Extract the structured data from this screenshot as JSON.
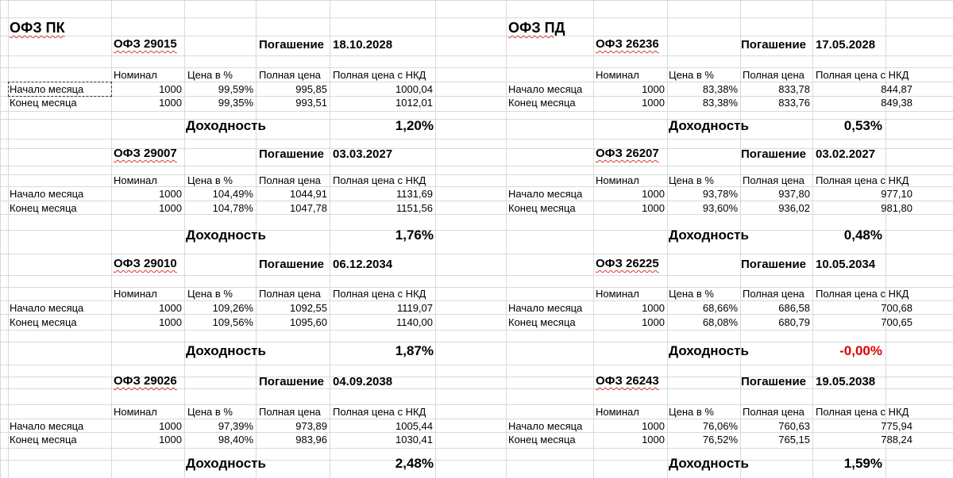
{
  "labels": {
    "nominal": "Номинал",
    "price_pct": "Цена в %",
    "full_price": "Полная цена",
    "full_price_nkd": "Полная цена с НКД",
    "start": "Начало месяца",
    "end": "Конец месяца",
    "maturity": "Погашение",
    "yield": "Доходность"
  },
  "sections": [
    {
      "title": "ОФЗ ПК",
      "bonds": [
        {
          "name": "ОФЗ 29015",
          "maturity_date": "18.10.2028",
          "start": {
            "nominal": "1000",
            "price_pct": "99,59%",
            "full_price": "995,85",
            "full_price_nkd": "1000,04"
          },
          "end": {
            "nominal": "1000",
            "price_pct": "99,35%",
            "full_price": "993,51",
            "full_price_nkd": "1012,01"
          },
          "yield": "1,20%",
          "yield_negative": false
        },
        {
          "name": "ОФЗ 29007",
          "maturity_date": "03.03.2027",
          "start": {
            "nominal": "1000",
            "price_pct": "104,49%",
            "full_price": "1044,91",
            "full_price_nkd": "1131,69"
          },
          "end": {
            "nominal": "1000",
            "price_pct": "104,78%",
            "full_price": "1047,78",
            "full_price_nkd": "1151,56"
          },
          "yield": "1,76%",
          "yield_negative": false
        },
        {
          "name": "ОФЗ 29010",
          "maturity_date": "06.12.2034",
          "start": {
            "nominal": "1000",
            "price_pct": "109,26%",
            "full_price": "1092,55",
            "full_price_nkd": "1119,07"
          },
          "end": {
            "nominal": "1000",
            "price_pct": "109,56%",
            "full_price": "1095,60",
            "full_price_nkd": "1140,00"
          },
          "yield": "1,87%",
          "yield_negative": false
        },
        {
          "name": "ОФЗ 29026",
          "maturity_date": "04.09.2038",
          "start": {
            "nominal": "1000",
            "price_pct": "97,39%",
            "full_price": "973,89",
            "full_price_nkd": "1005,44"
          },
          "end": {
            "nominal": "1000",
            "price_pct": "98,40%",
            "full_price": "983,96",
            "full_price_nkd": "1030,41"
          },
          "yield": "2,48%",
          "yield_negative": false
        }
      ]
    },
    {
      "title": "ОФЗ ПД",
      "bonds": [
        {
          "name": "ОФЗ 26236",
          "maturity_date": "17.05.2028",
          "start": {
            "nominal": "1000",
            "price_pct": "83,38%",
            "full_price": "833,78",
            "full_price_nkd": "844,87"
          },
          "end": {
            "nominal": "1000",
            "price_pct": "83,38%",
            "full_price": "833,76",
            "full_price_nkd": "849,38"
          },
          "yield": "0,53%",
          "yield_negative": false
        },
        {
          "name": "ОФЗ 26207",
          "maturity_date": "03.02.2027",
          "start": {
            "nominal": "1000",
            "price_pct": "93,78%",
            "full_price": "937,80",
            "full_price_nkd": "977,10"
          },
          "end": {
            "nominal": "1000",
            "price_pct": "93,60%",
            "full_price": "936,02",
            "full_price_nkd": "981,80"
          },
          "yield": "0,48%",
          "yield_negative": false
        },
        {
          "name": "ОФЗ 26225",
          "maturity_date": "10.05.2034",
          "start": {
            "nominal": "1000",
            "price_pct": "68,66%",
            "full_price": "686,58",
            "full_price_nkd": "700,68"
          },
          "end": {
            "nominal": "1000",
            "price_pct": "68,08%",
            "full_price": "680,79",
            "full_price_nkd": "700,65"
          },
          "yield": "-0,00%",
          "yield_negative": true
        },
        {
          "name": "ОФЗ 26243",
          "maturity_date": "19.05.2038",
          "start": {
            "nominal": "1000",
            "price_pct": "76,06%",
            "full_price": "760,63",
            "full_price_nkd": "775,94"
          },
          "end": {
            "nominal": "1000",
            "price_pct": "76,52%",
            "full_price": "765,15",
            "full_price_nkd": "788,24"
          },
          "yield": "1,59%",
          "yield_negative": false
        }
      ]
    }
  ],
  "colors": {
    "gridline": "#d9d9d9",
    "negative": "#e00000",
    "spellcheck": "#d23b3b"
  }
}
